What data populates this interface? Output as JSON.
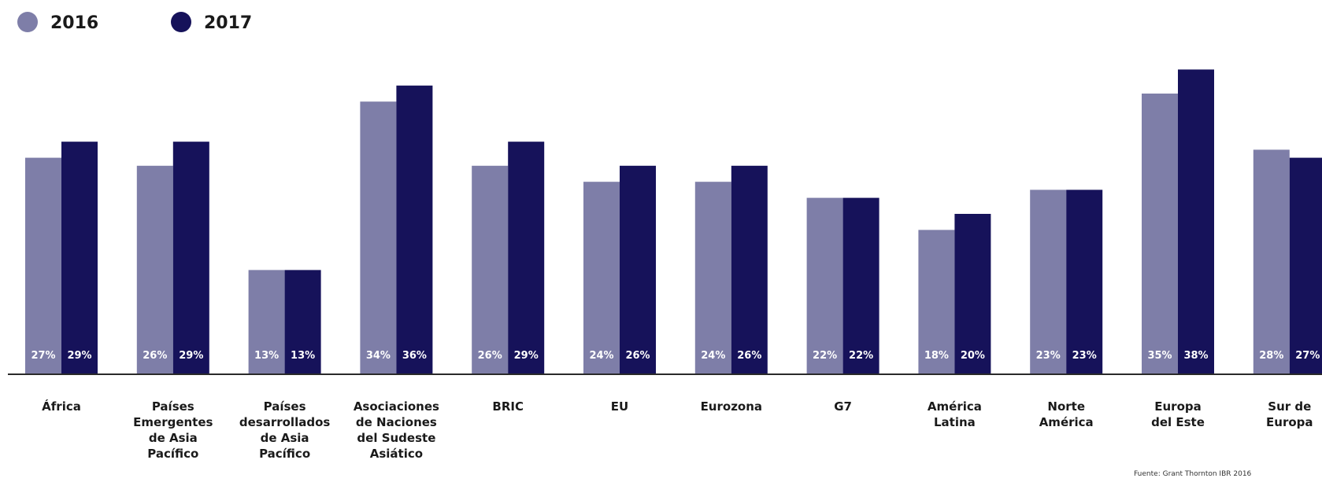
{
  "chart_data": {
    "type": "bar",
    "categories": [
      [
        "África"
      ],
      [
        "Países",
        "Emergentes",
        "de Asia",
        "Pacífico"
      ],
      [
        "Países",
        "desarrollados",
        "de Asia",
        "Pacífico"
      ],
      [
        "Asociaciones",
        "de Naciones",
        "del Sudeste",
        "Asiático"
      ],
      [
        "BRIC"
      ],
      [
        "EU"
      ],
      [
        "Eurozona"
      ],
      [
        "G7"
      ],
      [
        "América",
        "Latina"
      ],
      [
        "Norte",
        "América"
      ],
      [
        "Europa",
        "del Este"
      ],
      [
        "Sur de",
        "Europa"
      ]
    ],
    "series": [
      {
        "name": "2016",
        "color": "#7e7ea8",
        "values": [
          27,
          26,
          13,
          34,
          26,
          24,
          24,
          22,
          18,
          23,
          35,
          28
        ],
        "labels": [
          "27%",
          "26%",
          "13%",
          "34%",
          "26%",
          "24%",
          "24%",
          "22%",
          "18%",
          "23%",
          "35%",
          "28%"
        ]
      },
      {
        "name": "2017",
        "color": "#16125a",
        "values": [
          29,
          29,
          13,
          36,
          29,
          26,
          26,
          22,
          20,
          23,
          38,
          27
        ],
        "labels": [
          "29%",
          "29%",
          "13%",
          "36%",
          "29%",
          "26%",
          "26%",
          "22%",
          "20%",
          "23%",
          "38%",
          "27%"
        ]
      }
    ],
    "ylim": [
      0,
      40
    ],
    "grid": false,
    "legend_position": "top-left",
    "source": "Fuente: Grant Thornton IBR 2016"
  }
}
